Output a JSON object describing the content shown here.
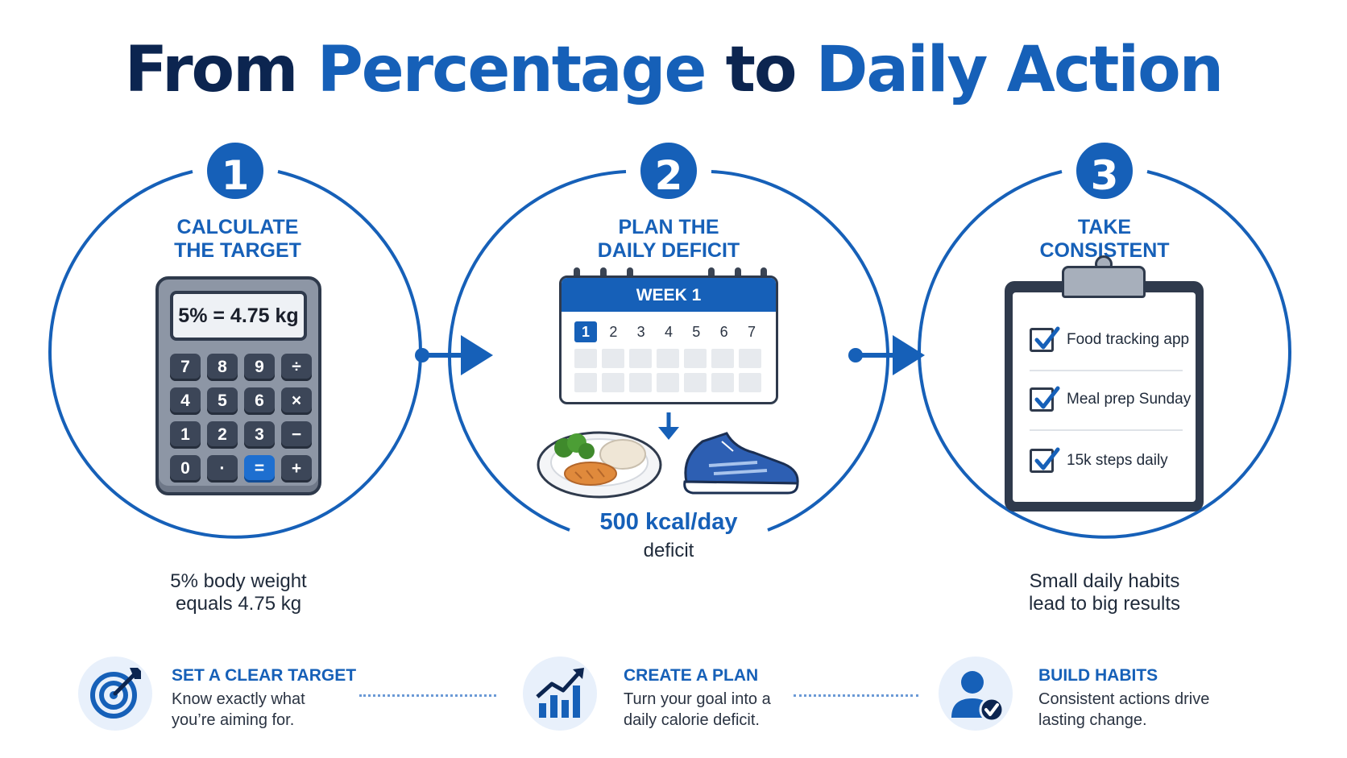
{
  "title": {
    "part1": "From ",
    "part2": "Percentage",
    "part3": " to ",
    "part4": "Daily Action"
  },
  "steps": [
    {
      "number": "1",
      "title": "Calculate the target",
      "caption": "5% body weight equals 4.75 kg"
    },
    {
      "number": "2",
      "title": "Plan the daily deficit",
      "caption_value": "500 kcal/day",
      "caption_label": "deficit"
    },
    {
      "number": "3",
      "title": "Take consistent action",
      "caption": "Small daily habits lead to big results"
    }
  ],
  "calculator": {
    "screen": "5% = 4.75 kg",
    "keys": [
      "7",
      "8",
      "9",
      "÷",
      "4",
      "5",
      "6",
      "×",
      "1",
      "2",
      "3",
      "−",
      "0",
      "·",
      "=",
      "+"
    ]
  },
  "calendar": {
    "header": "WEEK 1",
    "days": [
      "1",
      "2",
      "3",
      "4",
      "5",
      "6",
      "7"
    ],
    "active_day": "1"
  },
  "checklist": {
    "items": [
      "Food tracking app",
      "Meal prep Sunday",
      "15k steps daily"
    ]
  },
  "features": [
    {
      "icon": "target-icon",
      "title": "Set a clear target",
      "desc": "Know exactly what you’re aiming for."
    },
    {
      "icon": "growth-chart-icon",
      "title": "Create a plan",
      "desc": "Turn your goal into a daily calorie deficit."
    },
    {
      "icon": "user-check-icon",
      "title": "Build habits",
      "desc": "Consistent actions drive lasting change."
    }
  ],
  "colors": {
    "accent": "#1660b8",
    "dark": "#0c2550",
    "ink": "#1f2a3a"
  }
}
